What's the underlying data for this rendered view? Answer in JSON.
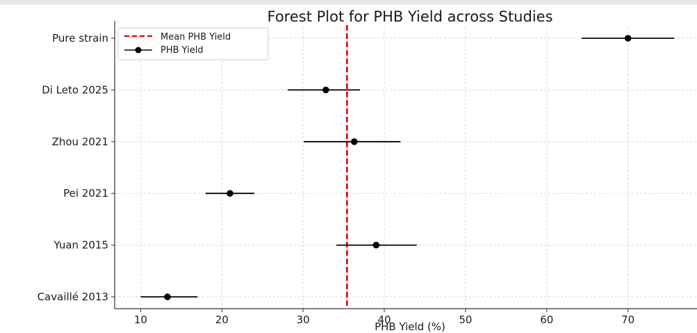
{
  "chart_data": {
    "type": "scatter",
    "title": "Forest Plot for PHB Yield across Studies",
    "xlabel": "PHB Yield (%)",
    "ylabel": "",
    "xlim": [
      6.8,
      78.5
    ],
    "x_ticks": [
      10,
      20,
      30,
      40,
      50,
      60,
      70
    ],
    "grid": true,
    "legend_position": "top-left",
    "studies": [
      {
        "label": "Pure strain",
        "value": 70.0,
        "ci_low": 64.3,
        "ci_high": 75.7
      },
      {
        "label": "Di Leto 2025",
        "value": 32.8,
        "ci_low": 28.1,
        "ci_high": 37.0
      },
      {
        "label": "Zhou 2021",
        "value": 36.3,
        "ci_low": 30.1,
        "ci_high": 42.0
      },
      {
        "label": "Pei 2021",
        "value": 21.0,
        "ci_low": 18.0,
        "ci_high": 24.0
      },
      {
        "label": "Yuan 2015",
        "value": 39.0,
        "ci_low": 34.1,
        "ci_high": 44.0
      },
      {
        "label": "Cavaillé 2013",
        "value": 13.3,
        "ci_low": 10.0,
        "ci_high": 17.0
      }
    ],
    "reference_line": {
      "label": "Mean PHB Yield",
      "value": 35.4,
      "color": "#e00000",
      "style": "dashed"
    },
    "series": [
      {
        "name": "PHB Yield",
        "color": "#000000"
      }
    ],
    "legend": [
      "Mean PHB Yield",
      "PHB Yield"
    ]
  }
}
